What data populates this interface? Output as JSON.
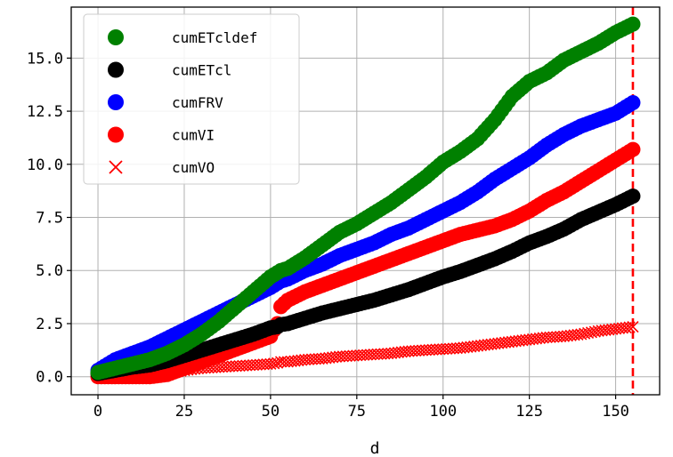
{
  "chart_data": {
    "type": "scatter",
    "title": "",
    "xlabel": "d",
    "ylabel": "",
    "xlim": [
      -7.75,
      162.75
    ],
    "ylim": [
      -0.85,
      17.4
    ],
    "xticks": [
      "0",
      "25",
      "50",
      "75",
      "100",
      "125",
      "150"
    ],
    "yticks": [
      "0.0",
      "2.5",
      "5.0",
      "7.5",
      "10.0",
      "12.5",
      "15.0"
    ],
    "grid": true,
    "legend_position": "top-left",
    "vline": {
      "x": 155,
      "color": "#ff0000",
      "style": "dashed"
    },
    "x": [
      0,
      5,
      10,
      15,
      20,
      25,
      30,
      35,
      40,
      45,
      50,
      52,
      53,
      55,
      60,
      65,
      70,
      75,
      80,
      85,
      90,
      95,
      100,
      105,
      110,
      115,
      120,
      125,
      130,
      135,
      140,
      145,
      150,
      155
    ],
    "series": [
      {
        "name": "cumETcldef",
        "color": "#008000",
        "marker": "circle",
        "values": [
          0.2,
          0.4,
          0.6,
          0.8,
          1.1,
          1.5,
          2.0,
          2.6,
          3.3,
          4.0,
          4.7,
          4.9,
          5.0,
          5.1,
          5.6,
          6.2,
          6.8,
          7.2,
          7.7,
          8.2,
          8.8,
          9.4,
          10.1,
          10.6,
          11.2,
          12.1,
          13.2,
          13.9,
          14.3,
          14.9,
          15.3,
          15.7,
          16.2,
          16.6
        ]
      },
      {
        "name": "cumETcl",
        "color": "#000000",
        "marker": "circle",
        "values": [
          0.15,
          0.3,
          0.45,
          0.55,
          0.75,
          1.0,
          1.25,
          1.5,
          1.75,
          2.0,
          2.3,
          2.35,
          2.45,
          2.5,
          2.75,
          3.0,
          3.2,
          3.4,
          3.6,
          3.85,
          4.1,
          4.4,
          4.7,
          4.95,
          5.25,
          5.55,
          5.9,
          6.3,
          6.6,
          6.95,
          7.4,
          7.75,
          8.1,
          8.5
        ]
      },
      {
        "name": "cumFRV",
        "color": "#0000ff",
        "marker": "circle",
        "values": [
          0.3,
          0.8,
          1.1,
          1.4,
          1.8,
          2.2,
          2.6,
          3.0,
          3.4,
          3.8,
          4.2,
          4.4,
          4.5,
          4.6,
          5.0,
          5.3,
          5.7,
          6.0,
          6.3,
          6.7,
          7.0,
          7.4,
          7.8,
          8.2,
          8.7,
          9.3,
          9.8,
          10.3,
          10.9,
          11.4,
          11.8,
          12.1,
          12.4,
          12.9
        ]
      },
      {
        "name": "cumVI",
        "color": "#ff0000",
        "marker": "circle",
        "values": [
          0.0,
          0.0,
          0.0,
          0.0,
          0.1,
          0.4,
          0.7,
          1.0,
          1.3,
          1.6,
          1.9,
          2.5,
          3.3,
          3.6,
          4.0,
          4.3,
          4.6,
          4.9,
          5.2,
          5.5,
          5.8,
          6.1,
          6.4,
          6.7,
          6.9,
          7.1,
          7.4,
          7.8,
          8.3,
          8.7,
          9.2,
          9.7,
          10.2,
          10.7
        ]
      },
      {
        "name": "cumVO",
        "color": "#ff0000",
        "marker": "x",
        "values": [
          0.0,
          0.0,
          0.0,
          0.05,
          0.15,
          0.3,
          0.4,
          0.45,
          0.5,
          0.55,
          0.6,
          0.65,
          0.7,
          0.7,
          0.8,
          0.85,
          0.95,
          1.0,
          1.05,
          1.1,
          1.2,
          1.25,
          1.3,
          1.35,
          1.45,
          1.55,
          1.65,
          1.75,
          1.85,
          1.9,
          2.0,
          2.15,
          2.25,
          2.35
        ]
      }
    ]
  }
}
